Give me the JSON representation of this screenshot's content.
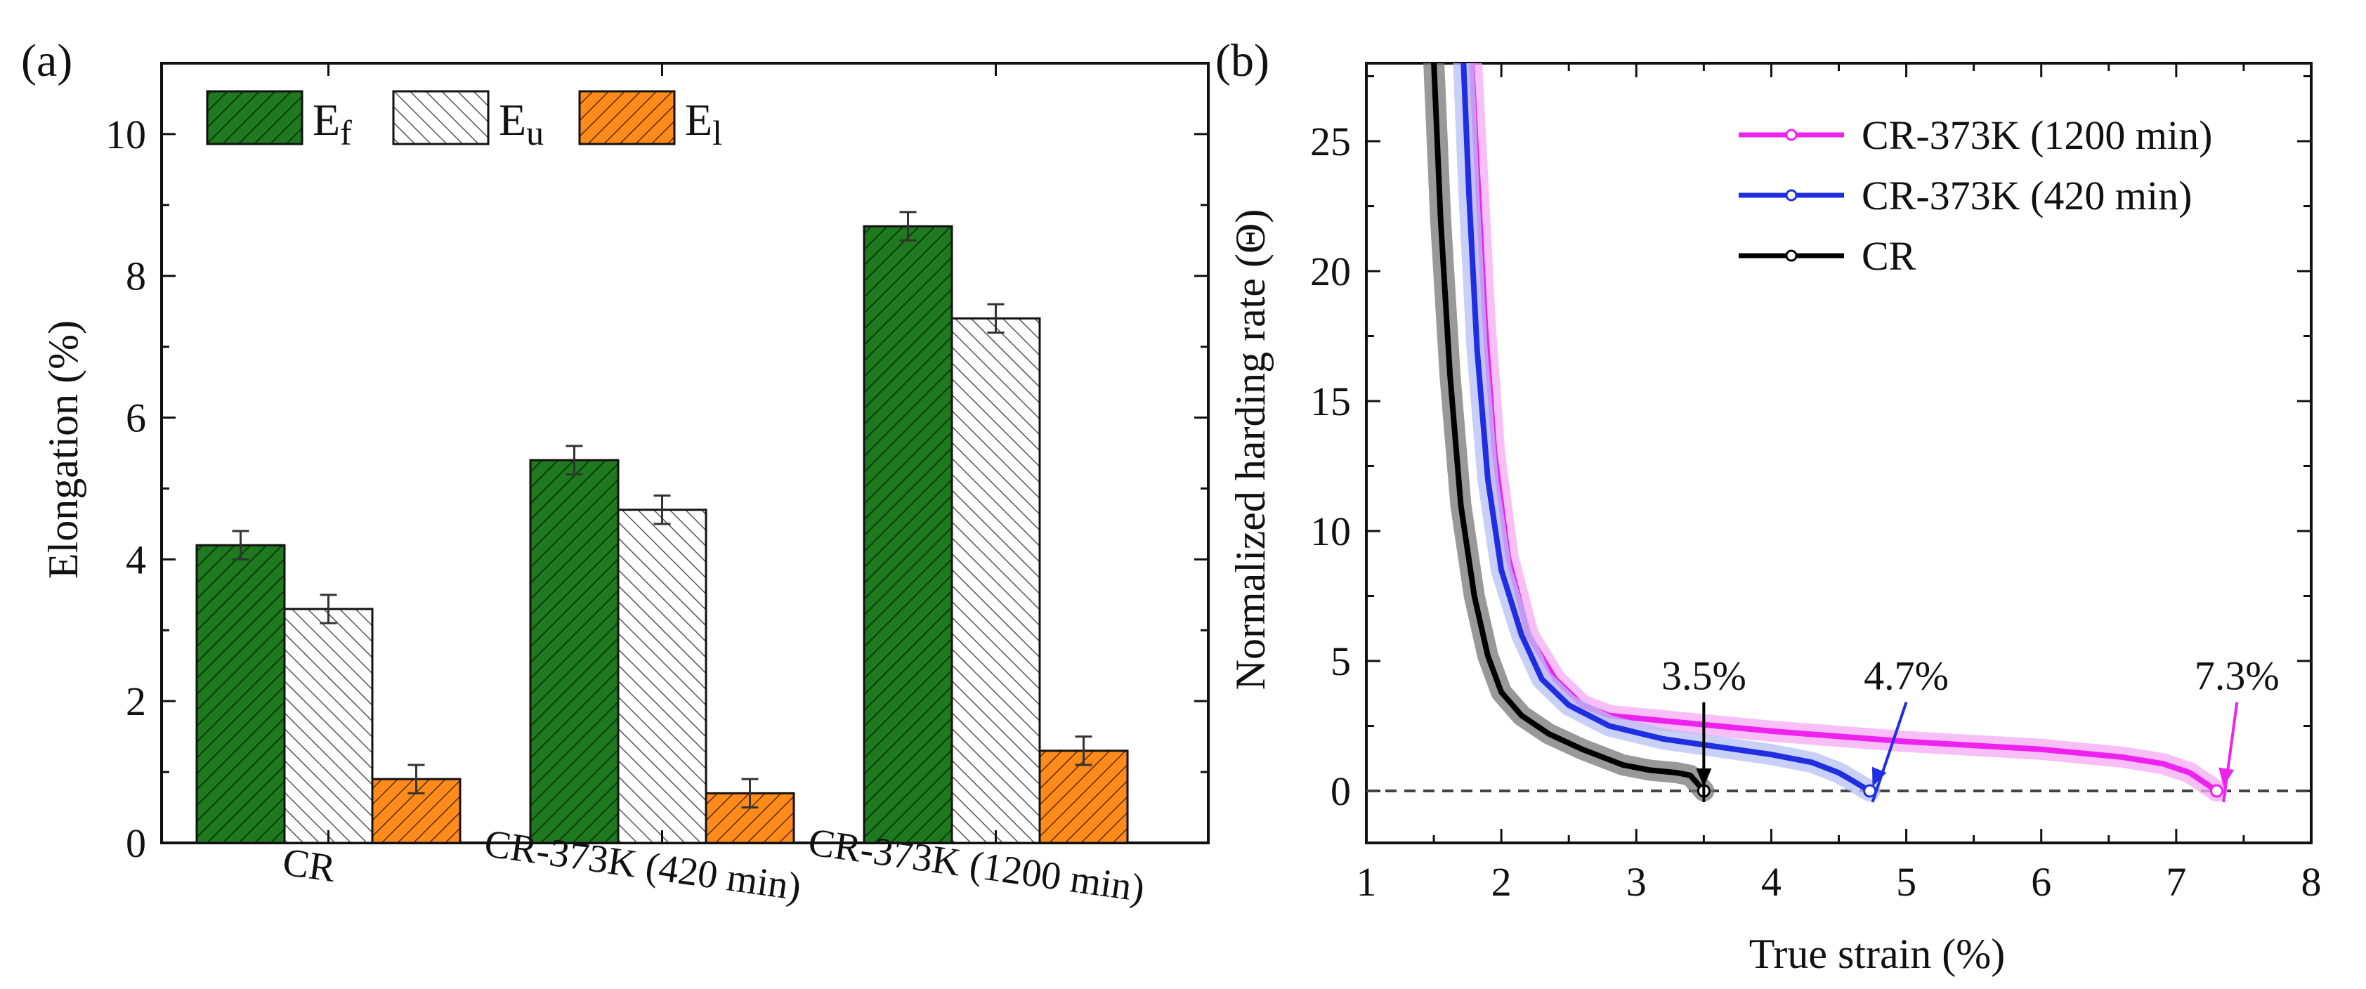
{
  "colors": {
    "ef": "#1f7a1f",
    "ef_hatch": "#0a3d0a",
    "eu": "#ffffff",
    "eu_hatch": "#555555",
    "el": "#ff8c1a",
    "el_hatch": "#5a2a00",
    "cr": "#000000",
    "cr_light": "#777777",
    "s420": "#1f2ee0",
    "s420_light": "#b7c0f5",
    "s1200": "#ee22ee",
    "s1200_light": "#f6a8f6",
    "dash": "#444444"
  },
  "chart_data": [
    {
      "type": "bar",
      "panel_label": "(a)",
      "categories": [
        "CR",
        "CR-373K (420 min)",
        "CR-373K (1200 min)"
      ],
      "series": [
        {
          "name": "E",
          "sub": "f",
          "values": [
            4.2,
            5.4,
            8.7
          ],
          "errors": [
            0.2,
            0.2,
            0.2
          ]
        },
        {
          "name": "E",
          "sub": "u",
          "values": [
            3.3,
            4.7,
            7.4
          ],
          "errors": [
            0.2,
            0.2,
            0.2
          ]
        },
        {
          "name": "E",
          "sub": "l",
          "values": [
            0.9,
            0.7,
            1.3
          ],
          "errors": [
            0.2,
            0.2,
            0.2
          ]
        }
      ],
      "xlabel": "",
      "ylabel": "Elongation (%)",
      "ylim": [
        0,
        11
      ],
      "yticks": [
        0,
        2,
        4,
        6,
        8,
        10
      ],
      "legend": "top-left"
    },
    {
      "type": "line",
      "panel_label": "(b)",
      "xlabel": "True strain (%)",
      "ylabel": "Normalized harding rate (Θ)",
      "xlim": [
        1,
        8
      ],
      "ylim": [
        -2,
        28
      ],
      "xticks": [
        1,
        2,
        3,
        4,
        5,
        6,
        7,
        8
      ],
      "yticks": [
        0,
        5,
        10,
        15,
        20,
        25
      ],
      "reference_line": 0,
      "legend": "top-right",
      "series": [
        {
          "name": "CR-373K (1200 min)",
          "x": [
            1.78,
            1.82,
            1.88,
            1.95,
            2.05,
            2.2,
            2.4,
            2.6,
            2.8,
            3.2,
            4.0,
            5.0,
            6.0,
            6.6,
            6.9,
            7.1,
            7.2,
            7.3
          ],
          "y": [
            28,
            24,
            18,
            13,
            9,
            6,
            4.3,
            3.3,
            2.9,
            2.7,
            2.3,
            1.9,
            1.6,
            1.3,
            1.05,
            0.7,
            0.35,
            0
          ]
        },
        {
          "name": "CR-373K (420 min)",
          "x": [
            1.72,
            1.76,
            1.82,
            1.9,
            2.0,
            2.15,
            2.3,
            2.5,
            2.8,
            3.2,
            3.6,
            4.0,
            4.3,
            4.5,
            4.6,
            4.68,
            4.73
          ],
          "y": [
            28,
            23,
            17,
            12,
            8.5,
            6,
            4.3,
            3.3,
            2.5,
            2.0,
            1.7,
            1.4,
            1.1,
            0.7,
            0.4,
            0.15,
            0
          ]
        },
        {
          "name": "CR",
          "x": [
            1.5,
            1.55,
            1.62,
            1.7,
            1.8,
            1.9,
            2.0,
            2.15,
            2.35,
            2.6,
            2.9,
            3.1,
            3.3,
            3.4,
            3.45,
            3.5
          ],
          "y": [
            28,
            22,
            16,
            11,
            7.5,
            5.2,
            3.8,
            2.9,
            2.2,
            1.6,
            1.0,
            0.8,
            0.7,
            0.6,
            0.3,
            0
          ]
        }
      ],
      "annotations": [
        {
          "text": "3.5%",
          "x": 3.5,
          "y": 0,
          "label_x": 3.5,
          "label_y": 3.9
        },
        {
          "text": "4.7%",
          "x": 4.75,
          "y": 0,
          "label_x": 5.0,
          "label_y": 3.9
        },
        {
          "text": "7.3%",
          "x": 7.35,
          "y": 0,
          "label_x": 7.45,
          "label_y": 3.9
        }
      ]
    }
  ]
}
